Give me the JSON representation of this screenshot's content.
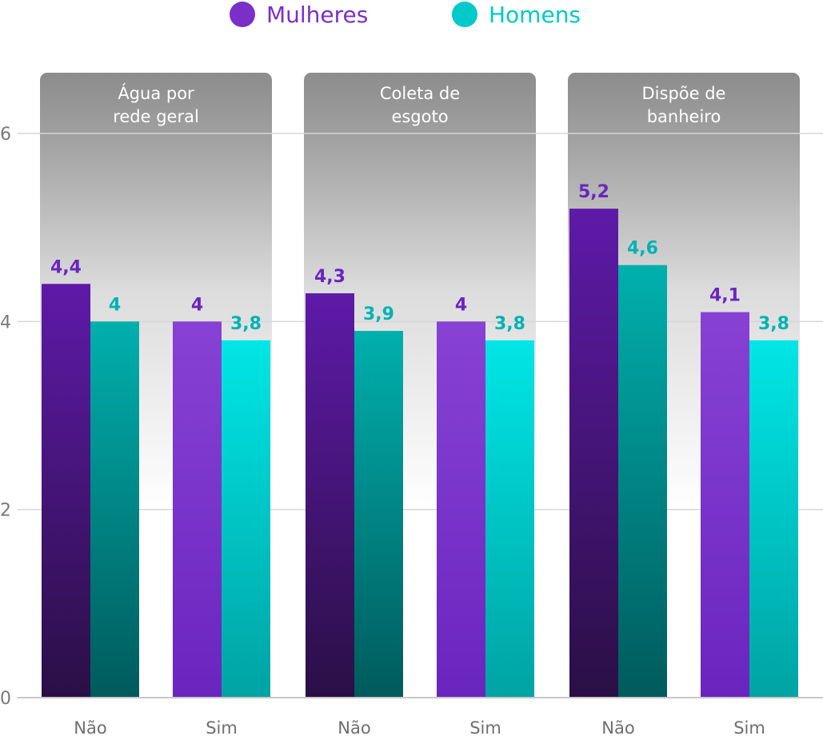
{
  "legend": [
    {
      "name": "Mulheres",
      "color": "#7b2fc9"
    },
    {
      "name": "Homens",
      "color": "#00c9c9"
    }
  ],
  "y_ticks": [
    "0",
    "2",
    "4",
    "6"
  ],
  "chart_data": {
    "type": "bar",
    "ylim": [
      0,
      6
    ],
    "grid": true,
    "legend_position": "top-center",
    "panels": [
      {
        "title": [
          "Água por",
          "rede geral"
        ],
        "categories": [
          "Não",
          "Sim"
        ]
      },
      {
        "title": [
          "Coleta de",
          "esgoto"
        ],
        "categories": [
          "Não",
          "Sim"
        ]
      },
      {
        "title": [
          "Dispõe de",
          "banheiro"
        ],
        "categories": [
          "Não",
          "Sim"
        ]
      }
    ],
    "series": [
      {
        "name": "Mulheres",
        "values": [
          4.4,
          4.0,
          4.3,
          4.0,
          5.2,
          4.1
        ],
        "labels": [
          "4,4",
          "4",
          "4,3",
          "4",
          "5,2",
          "4,1"
        ]
      },
      {
        "name": "Homens",
        "values": [
          4.0,
          3.8,
          3.9,
          3.8,
          4.6,
          3.8
        ],
        "labels": [
          "4",
          "3,8",
          "3,9",
          "3,8",
          "4,6",
          "3,8"
        ]
      }
    ]
  }
}
